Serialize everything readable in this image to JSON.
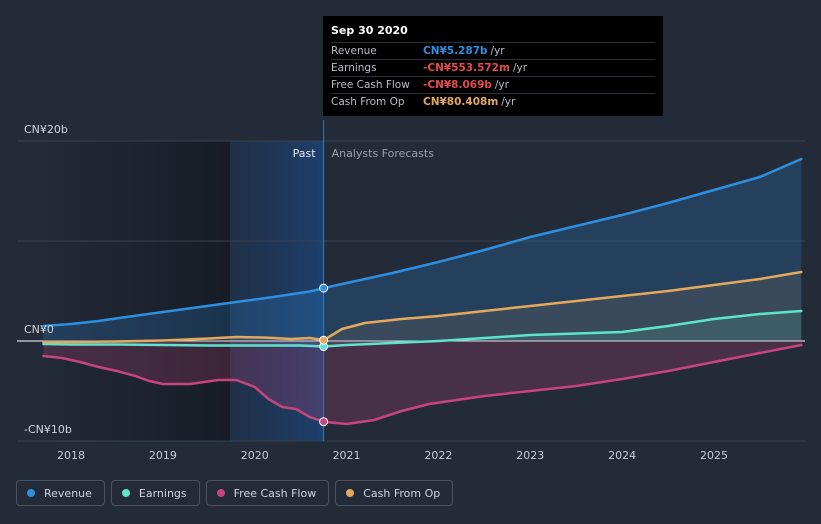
{
  "chart_data": {
    "type": "area",
    "y_axis_labels": [
      "CN¥20b",
      "CN¥0",
      "-CN¥10b"
    ],
    "ylim": [
      -10,
      20
    ],
    "xlim": [
      2017.7,
      2025.95
    ],
    "x_ticks": [
      "2018",
      "2019",
      "2020",
      "2021",
      "2022",
      "2023",
      "2024",
      "2025"
    ],
    "x_tick_values": [
      2018,
      2019,
      2020,
      2021,
      2022,
      2023,
      2024,
      2025
    ],
    "divider_x": 2020.75,
    "past_label": "Past",
    "forecast_label": "Analysts Forecasts",
    "series": [
      {
        "name": "Revenue",
        "color": "#2e8fe0",
        "x": [
          2017.7,
          2018.0,
          2018.3,
          2018.6,
          2019.0,
          2019.4,
          2019.8,
          2020.2,
          2020.6,
          2020.75,
          2021.0,
          2021.5,
          2022.0,
          2022.5,
          2023.0,
          2023.5,
          2024.0,
          2024.5,
          2025.0,
          2025.5,
          2025.95
        ],
        "values": [
          1.5,
          1.7,
          2.0,
          2.4,
          2.9,
          3.4,
          3.9,
          4.4,
          4.95,
          5.287,
          5.8,
          6.8,
          7.9,
          9.1,
          10.4,
          11.5,
          12.6,
          13.8,
          15.1,
          16.4,
          18.2
        ]
      },
      {
        "name": "Earnings",
        "color": "#5ee3cc",
        "x": [
          2017.7,
          2018.0,
          2018.5,
          2019.0,
          2019.5,
          2020.0,
          2020.5,
          2020.75,
          2021.0,
          2021.5,
          2022.0,
          2022.5,
          2023.0,
          2023.5,
          2024.0,
          2024.5,
          2025.0,
          2025.5,
          2025.95
        ],
        "values": [
          -0.3,
          -0.35,
          -0.35,
          -0.4,
          -0.45,
          -0.45,
          -0.45,
          -0.554,
          -0.4,
          -0.2,
          0.0,
          0.3,
          0.6,
          0.75,
          0.9,
          1.5,
          2.2,
          2.7,
          3.0
        ]
      },
      {
        "name": "Free Cash Flow",
        "color": "#c8447e",
        "x": [
          2017.7,
          2017.9,
          2018.1,
          2018.3,
          2018.5,
          2018.7,
          2018.85,
          2019.0,
          2019.15,
          2019.3,
          2019.45,
          2019.6,
          2019.8,
          2020.0,
          2020.15,
          2020.3,
          2020.45,
          2020.6,
          2020.75,
          2021.0,
          2021.3,
          2021.6,
          2021.9,
          2022.2,
          2022.5,
          2023.0,
          2023.5,
          2024.0,
          2024.5,
          2025.0,
          2025.5,
          2025.95
        ],
        "values": [
          -1.5,
          -1.7,
          -2.1,
          -2.6,
          -3.0,
          -3.5,
          -4.0,
          -4.3,
          -4.3,
          -4.3,
          -4.1,
          -3.9,
          -3.9,
          -4.6,
          -5.8,
          -6.6,
          -6.8,
          -7.6,
          -8.069,
          -8.3,
          -7.9,
          -7.0,
          -6.3,
          -5.9,
          -5.5,
          -5.0,
          -4.5,
          -3.8,
          -3.0,
          -2.1,
          -1.2,
          -0.4
        ]
      },
      {
        "name": "Cash From Op",
        "color": "#e5a95c",
        "x": [
          2017.7,
          2018.0,
          2018.5,
          2019.0,
          2019.5,
          2019.8,
          2020.1,
          2020.4,
          2020.6,
          2020.75,
          2020.95,
          2021.2,
          2021.6,
          2022.0,
          2022.5,
          2023.0,
          2023.5,
          2024.0,
          2024.5,
          2025.0,
          2025.5,
          2025.95
        ],
        "values": [
          -0.1,
          -0.1,
          -0.05,
          0.05,
          0.25,
          0.4,
          0.35,
          0.2,
          0.3,
          0.08,
          1.2,
          1.8,
          2.2,
          2.5,
          3.0,
          3.5,
          4.0,
          4.5,
          5.0,
          5.6,
          6.2,
          6.9
        ]
      }
    ],
    "highlight_points": [
      {
        "series": "Revenue",
        "x": 2020.75,
        "y": 5.287
      },
      {
        "series": "Earnings",
        "x": 2020.75,
        "y": -0.554
      },
      {
        "series": "Cash From Op",
        "x": 2020.75,
        "y": 0.08
      },
      {
        "series": "Free Cash Flow",
        "x": 2020.75,
        "y": -8.069
      }
    ]
  },
  "tooltip": {
    "date": "Sep 30 2020",
    "rows": [
      {
        "label": "Revenue",
        "value": "CN¥5.287b",
        "unit": "/yr",
        "color": "#2e8fe0"
      },
      {
        "label": "Earnings",
        "value": "-CN¥553.572m",
        "unit": "/yr",
        "color": "#e84a4a"
      },
      {
        "label": "Free Cash Flow",
        "value": "-CN¥8.069b",
        "unit": "/yr",
        "color": "#e84a4a"
      },
      {
        "label": "Cash From Op",
        "value": "CN¥80.408m",
        "unit": "/yr",
        "color": "#e5a95c"
      }
    ]
  },
  "legend": [
    {
      "label": "Revenue",
      "color": "#2e8fe0"
    },
    {
      "label": "Earnings",
      "color": "#5ee3cc"
    },
    {
      "label": "Free Cash Flow",
      "color": "#c8447e"
    },
    {
      "label": "Cash From Op",
      "color": "#e5a95c"
    }
  ]
}
